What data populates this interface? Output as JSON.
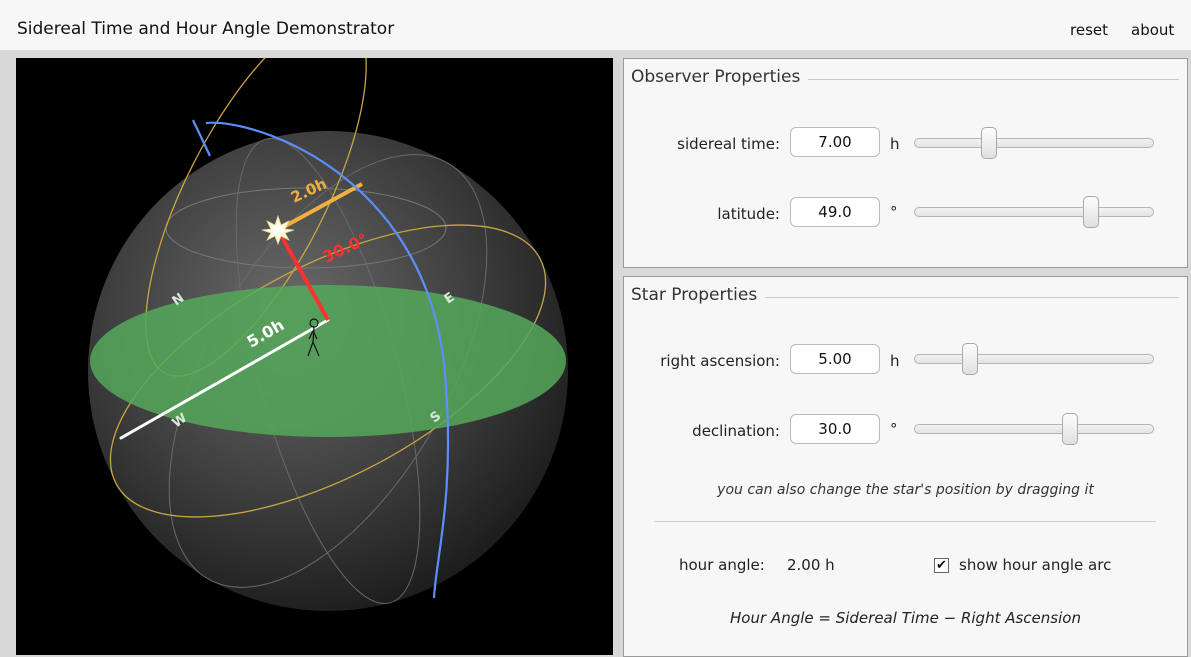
{
  "app": {
    "title": "Sidereal Time and Hour Angle Demonstrator",
    "menu": {
      "reset": "reset",
      "about": "about"
    }
  },
  "scene": {
    "cardinals": {
      "north": "N",
      "east": "E",
      "south": "S",
      "west": "W"
    },
    "ha_arc_label": "2.0h",
    "dec_label": "30.0°",
    "ra_label": "5.0h",
    "colors": {
      "horizon": "#55a85a",
      "meridian": "#5b8fff",
      "hour_arc": "#f0b040",
      "declination": "#ff3030",
      "equator": "#c8a640",
      "ra_line": "#ffffff"
    }
  },
  "observer": {
    "title": "Observer Properties",
    "sidereal": {
      "label": "sidereal time:",
      "value": "7.00",
      "unit": "h",
      "fraction": 0.31
    },
    "latitude": {
      "label": "latitude:",
      "value": "49.0",
      "unit": "°",
      "fraction": 0.74
    }
  },
  "star": {
    "title": "Star Properties",
    "ra": {
      "label": "right ascension:",
      "value": "5.00",
      "unit": "h",
      "fraction": 0.23
    },
    "dec": {
      "label": "declination:",
      "value": "30.0",
      "unit": "°",
      "fraction": 0.65
    },
    "hint": "you can also change the star's position by dragging it",
    "hour_angle_label": "hour angle:",
    "hour_angle_value": "2.00 h",
    "show_arc_label": "show hour angle arc",
    "show_arc_checked": true,
    "formula": "Hour Angle  =  Sidereal Time  −  Right Ascension"
  }
}
